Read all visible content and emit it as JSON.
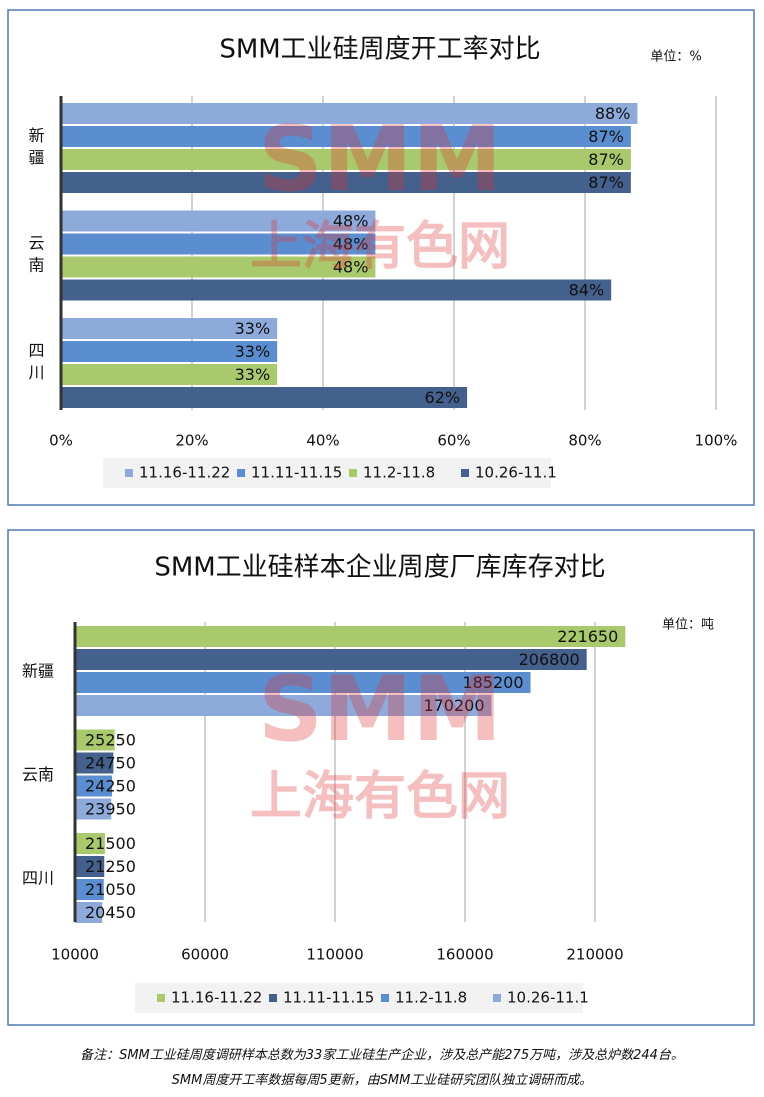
{
  "chart_data": [
    {
      "type": "hbar",
      "title": "SMM工业硅周度开工率对比",
      "unit": "单位：%",
      "watermark": {
        "logo": "SMM",
        "text": "上海有色网"
      },
      "categories": [
        "新疆",
        "云南",
        "四川"
      ],
      "series": [
        {
          "name": "11.16-11.22",
          "color": "#8eaadb",
          "values": [
            88,
            48,
            33
          ],
          "value_labels": [
            "88%",
            "48%",
            "33%"
          ]
        },
        {
          "name": "11.11-11.15",
          "color": "#5b8ed0",
          "values": [
            87,
            48,
            33
          ],
          "value_labels": [
            "87%",
            "48%",
            "33%"
          ]
        },
        {
          "name": "11.2-11.8",
          "color": "#a8c96c",
          "values": [
            87,
            48,
            33
          ],
          "value_labels": [
            "87%",
            "48%",
            "33%"
          ]
        },
        {
          "name": "10.26-11.1",
          "color": "#44608c",
          "values": [
            87,
            84,
            62
          ],
          "value_labels": [
            "87%",
            "84%",
            "62%"
          ]
        }
      ],
      "xlim": [
        0,
        100
      ],
      "xticks": [
        {
          "value": 0,
          "label": "0%"
        },
        {
          "value": 20,
          "label": "20%"
        },
        {
          "value": 40,
          "label": "40%"
        },
        {
          "value": 60,
          "label": "60%"
        },
        {
          "value": 80,
          "label": "80%"
        },
        {
          "value": 100,
          "label": "100%"
        }
      ],
      "grid": true
    },
    {
      "type": "hbar",
      "title": "SMM工业硅样本企业周度厂库库存对比",
      "unit": "单位：吨",
      "watermark": {
        "logo": "SMM",
        "text": "上海有色网"
      },
      "categories": [
        "新疆",
        "云南",
        "四川"
      ],
      "series": [
        {
          "name": "11.16-11.22",
          "color": "#a8c96c",
          "values": [
            221650,
            25250,
            21500
          ]
        },
        {
          "name": "11.11-11.15",
          "color": "#44608c",
          "values": [
            206800,
            24750,
            21250
          ]
        },
        {
          "name": "11.2-11.8",
          "color": "#5b8ed0",
          "values": [
            185200,
            24250,
            21050
          ]
        },
        {
          "name": "10.26-11.1",
          "color": "#8eaadb",
          "values": [
            170200,
            23950,
            20450
          ]
        }
      ],
      "xlim": [
        10000,
        230000
      ],
      "xticks": [
        10000,
        60000,
        110000,
        160000,
        210000
      ],
      "grid": true
    }
  ],
  "footnote": [
    "备注：SMM工业硅周度调研样本总数为33家工业硅生产企业，涉及总产能275万吨，涉及总炉数244台。",
    "SMM周度开工率数据每周5更新，由SMM工业硅研究团队独立调研而成。"
  ]
}
